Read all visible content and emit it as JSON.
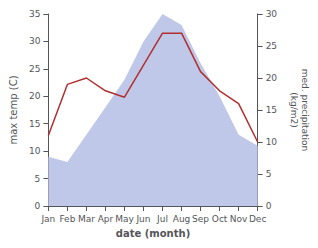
{
  "chart_data": {
    "type": "line",
    "categories": [
      "Jan",
      "Feb",
      "Mar",
      "Apr",
      "May",
      "Jun",
      "Jul",
      "Aug",
      "Sep",
      "Oct",
      "Nov",
      "Dec"
    ],
    "xlabel": "date (month)",
    "ylabel": "max temp (C)",
    "y2label": "med. precipitation\n(kg/m2)",
    "ylim": [
      0,
      35
    ],
    "yticks": [
      0,
      5,
      10,
      15,
      20,
      25,
      30,
      35
    ],
    "y2lim": [
      0,
      30
    ],
    "y2ticks": [
      0,
      5,
      10,
      15,
      20,
      25,
      30
    ],
    "grid": false,
    "series": [
      {
        "type": "area",
        "color": "#bfc8e8",
        "values": [
          9,
          8,
          13,
          18,
          23,
          30,
          35,
          33,
          26,
          20,
          13,
          11
        ]
      },
      {
        "type": "line",
        "color": "#b03030",
        "axis": "y2",
        "values": [
          11,
          19,
          20,
          18,
          17,
          22,
          27,
          27,
          21,
          18,
          16,
          10
        ]
      }
    ]
  }
}
